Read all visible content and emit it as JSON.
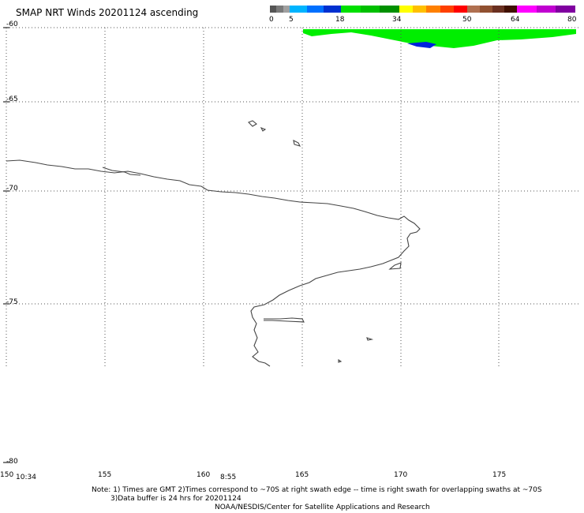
{
  "title": "SMAP NRT Winds 20201124 ascending",
  "colorbar": {
    "ticks": [
      "0",
      "5",
      "18",
      "34",
      "50",
      "64",
      "80"
    ],
    "segments": [
      {
        "from": 0,
        "to": 5,
        "colors": [
          "#555555",
          "#7a7a7a",
          "#a0a0a0"
        ]
      },
      {
        "from": 5,
        "to": 18,
        "colors": [
          "#00b4ff",
          "#0070ff",
          "#0030d0"
        ]
      },
      {
        "from": 18,
        "to": 34,
        "colors": [
          "#00e000",
          "#00c000",
          "#009000"
        ]
      },
      {
        "from": 34,
        "to": 50,
        "colors": [
          "#ffff00",
          "#ffc000",
          "#ff8000",
          "#ff4000",
          "#ff0000"
        ]
      },
      {
        "from": 50,
        "to": 64,
        "colors": [
          "#b07050",
          "#905030",
          "#6a3020",
          "#401000"
        ]
      },
      {
        "from": 64,
        "to": 80,
        "colors": [
          "#ff00ff",
          "#c000d0",
          "#8000a0"
        ]
      }
    ]
  },
  "lat_labels": [
    "-60",
    "-65",
    "-70",
    "-75",
    "-80"
  ],
  "lon_labels": [
    "150",
    "155",
    "160",
    "165",
    "170",
    "175"
  ],
  "swath_times": [
    "10:34",
    "8:55"
  ],
  "notes": [
    "Note: 1) Times are GMT 2)Times correspond to ~70S at right swath edge -- time is right swath for overlapping swaths at ~70S",
    "3)Data buffer is 24 hrs for 20201124",
    "NOAA/NESDIS/Center for Satellite Applications and Research"
  ],
  "wind_colors": {
    "swath": "#00ee00",
    "core": "#0022dd"
  }
}
